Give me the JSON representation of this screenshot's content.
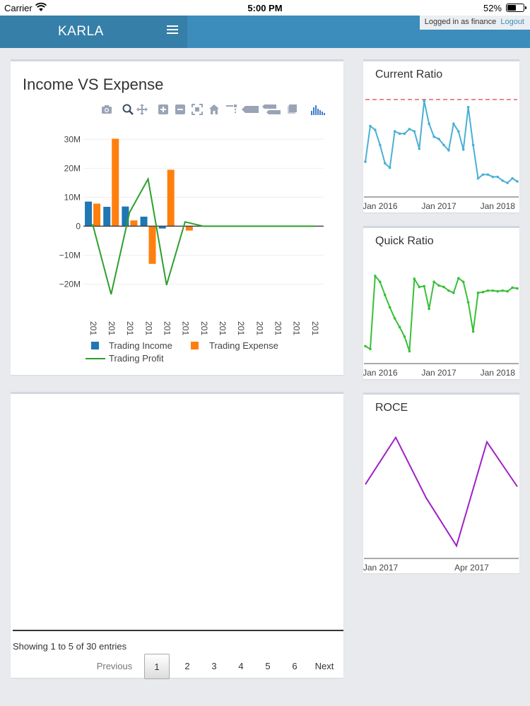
{
  "status_bar": {
    "carrier": "Carrier",
    "time": "5:00 PM",
    "battery": "52%"
  },
  "header": {
    "brand": "KARLA",
    "logged_in": "Logged in as finance",
    "logout": "Logout"
  },
  "income_panel": {
    "title": "Income VS Expense",
    "modebar_icons": [
      "camera-icon",
      "zoom-icon",
      "pan-icon",
      "zoom-in-icon",
      "zoom-out-icon",
      "autoscale-icon",
      "reset-axes-icon",
      "spike-lines-icon",
      "hover-closest-icon",
      "hover-compare-icon",
      "edit-chart-icon",
      "plotly-logo-icon"
    ]
  },
  "table_panel": {
    "info": "Showing 1 to 5 of 30 entries",
    "prev": "Previous",
    "next": "Next",
    "pages": [
      "1",
      "2",
      "3",
      "4",
      "5",
      "6"
    ]
  },
  "chart_data": [
    {
      "type": "bar",
      "title": "Income VS Expense",
      "categories": [
        "201",
        "201",
        "201",
        "201",
        "201",
        "201",
        "201",
        "201",
        "201",
        "201",
        "201",
        "201",
        "201"
      ],
      "series": [
        {
          "name": "Trading Income",
          "kind": "bar",
          "color": "#1f77b4",
          "values": [
            8.5,
            6.7,
            6.8,
            3.3,
            -0.8,
            0,
            0,
            0,
            0,
            0,
            0,
            0,
            0
          ]
        },
        {
          "name": "Trading Expense",
          "kind": "bar",
          "color": "#ff7f0e",
          "values": [
            7.8,
            30.2,
            2.0,
            -13.0,
            19.5,
            -1.5,
            0,
            0,
            0,
            0,
            0,
            0,
            0
          ]
        },
        {
          "name": "Trading Profit",
          "kind": "line",
          "color": "#2ca02c",
          "values": [
            0.7,
            -23.5,
            4.8,
            16.3,
            -20.3,
            1.5,
            0,
            0,
            0,
            0,
            0,
            0,
            0
          ]
        }
      ],
      "yticks": [
        "30M",
        "20M",
        "10M",
        "0",
        "−10M",
        "−20M"
      ],
      "ytick_values": [
        30,
        20,
        10,
        0,
        -10,
        -20
      ],
      "ylim": [
        -25,
        33
      ],
      "unit": "M"
    },
    {
      "type": "line",
      "title": "Current Ratio",
      "color": "#4ab0d4",
      "reference_color": "#e0606a",
      "reference_value": 1.62,
      "x_labels": [
        "Jan 2016",
        "Jan 2017",
        "Jan 2018"
      ],
      "x_label_index": [
        3,
        15,
        27
      ],
      "values": [
        0.8,
        1.27,
        1.22,
        1.02,
        0.78,
        0.72,
        1.2,
        1.17,
        1.17,
        1.23,
        1.2,
        0.97,
        1.6,
        1.3,
        1.13,
        1.1,
        1.02,
        0.95,
        1.3,
        1.2,
        0.96,
        1.52,
        1.02,
        0.58,
        0.63,
        0.63,
        0.6,
        0.6,
        0.55,
        0.52,
        0.58,
        0.54
      ],
      "ylim": [
        0.4,
        1.75
      ]
    },
    {
      "type": "line",
      "title": "Quick Ratio",
      "color": "#38c038",
      "x_labels": [
        "Jan 2016",
        "Jan 2017",
        "Jan 2018"
      ],
      "x_label_index": [
        3,
        15,
        27
      ],
      "values": [
        0.62,
        0.58,
        1.58,
        1.5,
        1.32,
        1.15,
        1.0,
        0.88,
        0.75,
        0.55,
        1.54,
        1.43,
        1.44,
        1.13,
        1.5,
        1.45,
        1.43,
        1.38,
        1.35,
        1.55,
        1.5,
        1.22,
        0.82,
        1.35,
        1.36,
        1.38,
        1.38,
        1.37,
        1.38,
        1.37,
        1.42,
        1.41
      ],
      "ylim": [
        0.4,
        1.85
      ]
    },
    {
      "type": "line",
      "title": "ROCE",
      "color": "#a020c8",
      "x_labels": [
        "Jan 2017",
        "Apr 2017"
      ],
      "x_label_index": [
        0.5,
        3.5
      ],
      "values": [
        0.2,
        0.62,
        0.08,
        -0.35,
        0.58,
        0.18
      ],
      "ylim": [
        -0.45,
        0.75
      ]
    }
  ]
}
